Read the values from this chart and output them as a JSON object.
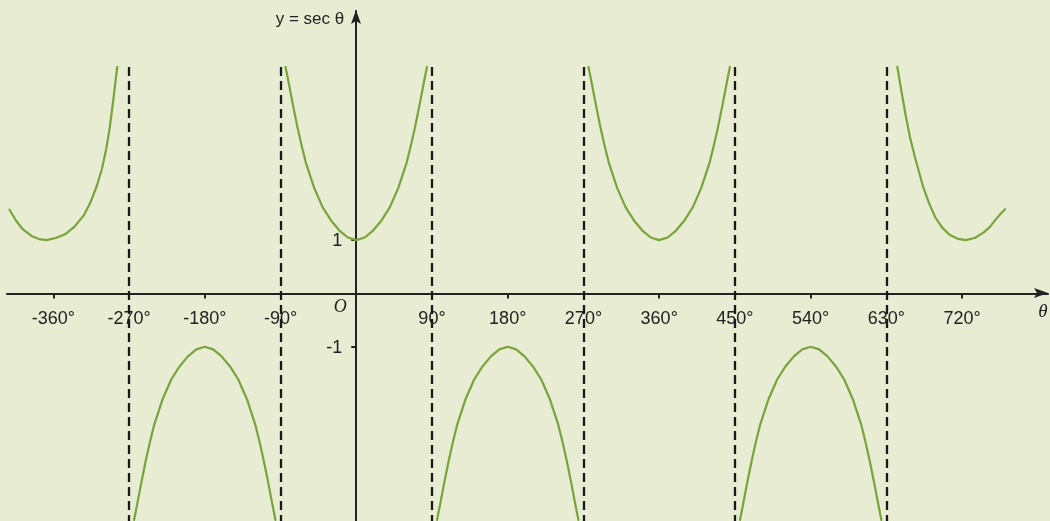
{
  "chart_data": {
    "type": "line",
    "xlabel": "θ",
    "ylabel": "y = sec θ",
    "annotations": [
      "O"
    ],
    "xlim": [
      -415,
      822
    ],
    "ylim": [
      -4.27,
      5.3
    ],
    "xticks": [
      {
        "value": -360,
        "label": "-360°"
      },
      {
        "value": -270,
        "label": "-270°"
      },
      {
        "value": -180,
        "label": "-180°"
      },
      {
        "value": -90,
        "label": "-90°"
      },
      {
        "value": 90,
        "label": "90°"
      },
      {
        "value": 180,
        "label": "180°"
      },
      {
        "value": 270,
        "label": "270°"
      },
      {
        "value": 360,
        "label": "360°"
      },
      {
        "value": 450,
        "label": "450°"
      },
      {
        "value": 540,
        "label": "540°"
      },
      {
        "value": 630,
        "label": "630°"
      },
      {
        "value": 720,
        "label": "720°"
      }
    ],
    "yticks": [
      -1,
      1
    ],
    "marker": "none",
    "line_style": "solid",
    "series": [
      {
        "color": "#7aa33c",
        "x": [
          -412,
          -404,
          -396,
          -386,
          -377,
          -368,
          -357,
          -346,
          -335,
          -324,
          -316,
          -308,
          -302,
          -297,
          -293,
          -289,
          -284,
          -270,
          -264,
          -260,
          -255,
          -250,
          -245,
          -240,
          -230,
          -220,
          -210,
          -200,
          -190,
          -180,
          -170,
          -160,
          -150,
          -140,
          -130,
          -120,
          -115,
          -110,
          -105,
          -100,
          -96,
          -90,
          -84,
          -80,
          -75,
          -70,
          -65,
          -60,
          -50,
          -40,
          -30,
          -20,
          -10,
          0,
          10,
          20,
          30,
          40,
          50,
          60,
          65,
          70,
          75,
          80,
          84,
          90,
          96,
          100,
          105,
          110,
          115,
          120,
          130,
          140,
          150,
          160,
          170,
          180,
          190,
          200,
          210,
          220,
          230,
          240,
          245,
          250,
          255,
          260,
          264,
          270,
          276,
          280,
          285,
          290,
          295,
          300,
          310,
          320,
          330,
          340,
          350,
          360,
          370,
          380,
          390,
          400,
          410,
          420,
          425,
          430,
          435,
          440,
          444,
          450,
          456,
          460,
          465,
          470,
          475,
          480,
          490,
          500,
          510,
          520,
          530,
          540,
          550,
          560,
          570,
          580,
          590,
          600,
          605,
          610,
          615,
          620,
          624,
          630,
          643,
          648,
          653,
          658,
          664,
          674,
          681,
          688,
          696,
          705,
          714,
          724,
          735,
          746,
          753,
          760,
          766,
          771
        ],
        "values": [
          1.57,
          1.36,
          1.2,
          1.08,
          1.02,
          1.0,
          1.04,
          1.11,
          1.25,
          1.46,
          1.7,
          2.03,
          2.35,
          2.72,
          3.1,
          3.59,
          4.25,
          null,
          -4.25,
          -3.93,
          -3.52,
          -3.13,
          -2.78,
          -2.46,
          -1.98,
          -1.62,
          -1.37,
          -1.18,
          -1.05,
          -1.0,
          -1.05,
          -1.18,
          -1.37,
          -1.62,
          -1.98,
          -2.46,
          -2.78,
          -3.13,
          -3.52,
          -3.93,
          -4.25,
          null,
          4.25,
          3.93,
          3.52,
          3.13,
          2.78,
          2.46,
          1.98,
          1.62,
          1.37,
          1.18,
          1.05,
          1.0,
          1.05,
          1.18,
          1.37,
          1.62,
          1.98,
          2.46,
          2.78,
          3.13,
          3.52,
          3.93,
          4.25,
          null,
          -4.25,
          -3.93,
          -3.52,
          -3.13,
          -2.78,
          -2.46,
          -1.98,
          -1.62,
          -1.37,
          -1.18,
          -1.05,
          -1.0,
          -1.05,
          -1.18,
          -1.37,
          -1.62,
          -1.98,
          -2.46,
          -2.78,
          -3.13,
          -3.52,
          -3.93,
          -4.25,
          null,
          4.25,
          3.93,
          3.52,
          3.13,
          2.78,
          2.46,
          1.98,
          1.62,
          1.37,
          1.18,
          1.05,
          1.0,
          1.05,
          1.18,
          1.37,
          1.62,
          1.98,
          2.46,
          2.78,
          3.13,
          3.52,
          3.93,
          4.25,
          null,
          -4.25,
          -3.93,
          -3.52,
          -3.13,
          -2.78,
          -2.46,
          -1.98,
          -1.62,
          -1.37,
          -1.18,
          -1.05,
          -1.0,
          -1.05,
          -1.18,
          -1.37,
          -1.62,
          -1.98,
          -2.46,
          -2.78,
          -3.13,
          -3.52,
          -3.93,
          -4.25,
          null,
          4.25,
          3.78,
          3.33,
          2.93,
          2.55,
          1.98,
          1.68,
          1.43,
          1.24,
          1.1,
          1.03,
          1.0,
          1.04,
          1.15,
          1.25,
          1.39,
          1.5,
          1.58
        ]
      }
    ],
    "ref_lines": [
      {
        "axis": "x",
        "value": -270,
        "color": "#1a1a1a",
        "line_style": "dashed"
      },
      {
        "axis": "x",
        "value": -90,
        "color": "#1a1a1a",
        "line_style": "dashed"
      },
      {
        "axis": "x",
        "value": 90,
        "color": "#1a1a1a",
        "line_style": "dashed"
      },
      {
        "axis": "x",
        "value": 270,
        "color": "#1a1a1a",
        "line_style": "dashed"
      },
      {
        "axis": "x",
        "value": 450,
        "color": "#1a1a1a",
        "line_style": "dashed"
      },
      {
        "axis": "x",
        "value": 630,
        "color": "#1a1a1a",
        "line_style": "dashed"
      }
    ]
  }
}
